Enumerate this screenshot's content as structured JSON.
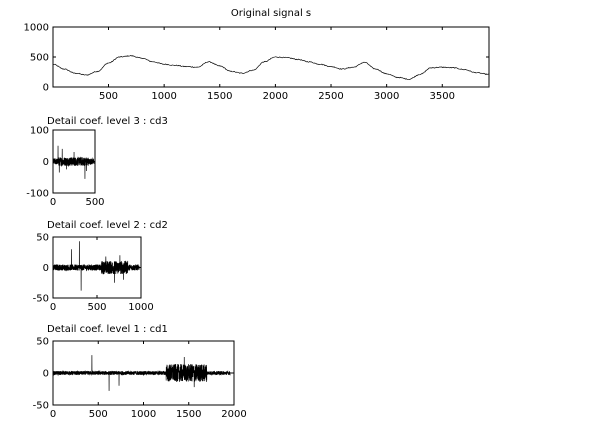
{
  "chart_data": [
    {
      "type": "line",
      "title": "Original signal s",
      "xlim": [
        1,
        3920
      ],
      "ylim": [
        0,
        1000
      ],
      "xticks": [
        500,
        1000,
        1500,
        2000,
        2500,
        3000,
        3500
      ],
      "yticks": [
        0,
        500,
        1000
      ],
      "series": [
        {
          "x": [
            1,
            100,
            200,
            300,
            400,
            500,
            600,
            700,
            800,
            900,
            1000,
            1100,
            1200,
            1300,
            1400,
            1500,
            1600,
            1700,
            1800,
            1900,
            2000,
            2100,
            2200,
            2300,
            2400,
            2500,
            2600,
            2700,
            2800,
            2900,
            3000,
            3100,
            3200,
            3300,
            3400,
            3500,
            3600,
            3700,
            3800,
            3920
          ],
          "values": [
            380,
            300,
            230,
            200,
            260,
            400,
            500,
            520,
            480,
            420,
            380,
            360,
            340,
            330,
            420,
            350,
            260,
            230,
            280,
            420,
            500,
            490,
            460,
            420,
            380,
            340,
            300,
            330,
            410,
            300,
            220,
            160,
            130,
            210,
            320,
            330,
            320,
            290,
            240,
            210
          ]
        }
      ]
    },
    {
      "type": "line",
      "title": "Detail coef. level 3 : cd3",
      "xlim": [
        0,
        500
      ],
      "ylim": [
        -100,
        100
      ],
      "xticks": [
        0,
        500
      ],
      "yticks": [
        -100,
        0,
        100
      ],
      "series": [
        {
          "n": 490,
          "x_range": [
            1,
            490
          ],
          "noise_amplitude": 10,
          "spikes": [
            [
              60,
              50
            ],
            [
              75,
              -35
            ],
            [
              110,
              40
            ],
            [
              160,
              -25
            ],
            [
              250,
              30
            ],
            [
              380,
              -55
            ],
            [
              400,
              -30
            ]
          ]
        }
      ]
    },
    {
      "type": "line",
      "title": "Detail coef. level 2 : cd2",
      "xlim": [
        0,
        1000
      ],
      "ylim": [
        -50,
        50
      ],
      "xticks": [
        0,
        500,
        1000
      ],
      "yticks": [
        -50,
        0,
        50
      ],
      "series": [
        {
          "n": 980,
          "x_range": [
            1,
            980
          ],
          "noise_amplitude": 5,
          "spikes": [
            [
              210,
              30
            ],
            [
              300,
              43
            ],
            [
              320,
              -38
            ],
            [
              600,
              18
            ],
            [
              700,
              -25
            ],
            [
              760,
              20
            ],
            [
              800,
              -20
            ]
          ]
        }
      ]
    },
    {
      "type": "line",
      "title": "Detail coef. level 1 : cd1",
      "xlim": [
        0,
        2000
      ],
      "ylim": [
        -50,
        50
      ],
      "xticks": [
        0,
        500,
        1000,
        1500,
        2000
      ],
      "yticks": [
        -50,
        0,
        50
      ],
      "series": [
        {
          "n": 1960,
          "x_range": [
            1,
            1960
          ],
          "noise_amplitude": 3,
          "burst_range": [
            1250,
            1700
          ],
          "burst_amplitude": 14,
          "spikes": [
            [
              430,
              28
            ],
            [
              620,
              -28
            ],
            [
              730,
              -20
            ],
            [
              1450,
              25
            ],
            [
              1560,
              -22
            ]
          ]
        }
      ]
    }
  ]
}
